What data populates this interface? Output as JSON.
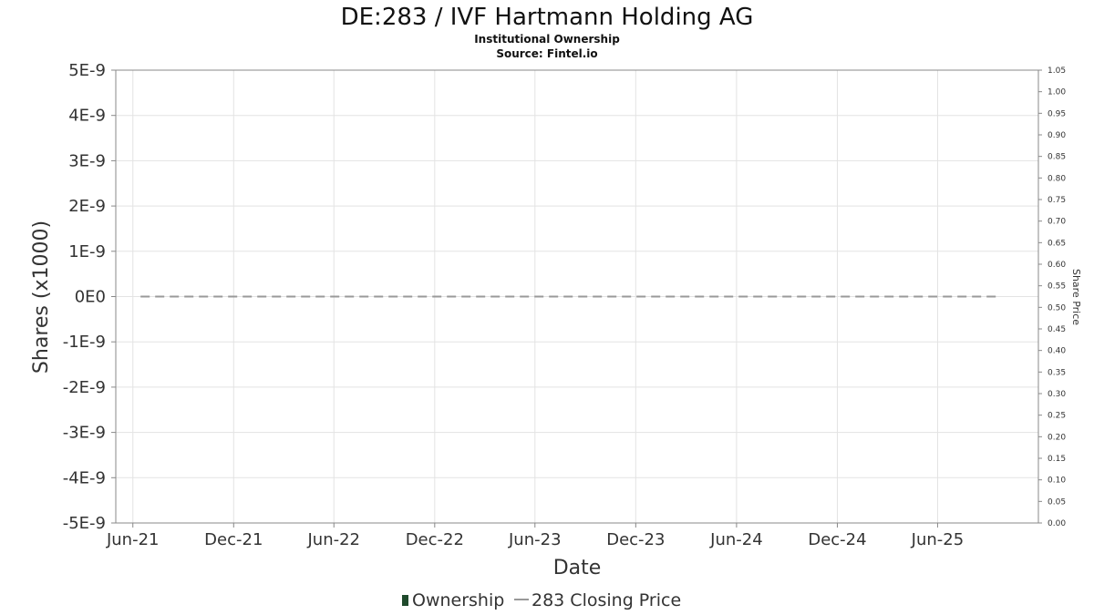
{
  "chart_data": {
    "type": "line",
    "title": "DE:283 / IVF Hartmann Holding AG",
    "subtitle_lines": [
      "Institutional Ownership",
      "Source: Fintel.io"
    ],
    "xlabel": "Date",
    "ylabel": "Shares (x1000)",
    "ylabel_right": "Share Price",
    "x_tick_labels": [
      "Jun-21",
      "Dec-21",
      "Jun-22",
      "Dec-22",
      "Jun-23",
      "Dec-23",
      "Jun-24",
      "Dec-24",
      "Jun-25"
    ],
    "x_tick_dates": [
      "2021-06-01",
      "2021-12-01",
      "2022-06-01",
      "2022-12-01",
      "2023-06-01",
      "2023-12-01",
      "2024-06-01",
      "2024-12-01",
      "2025-06-01"
    ],
    "xlim": [
      "2021-05-01",
      "2025-12-01"
    ],
    "y_left_ticks": [
      "5E-9",
      "4E-9",
      "3E-9",
      "2E-9",
      "1E-9",
      "0E0",
      "-1E-9",
      "-2E-9",
      "-3E-9",
      "-4E-9",
      "-5E-9"
    ],
    "ylim": [
      -5e-09,
      5e-09
    ],
    "y_right_ticks": [
      "1.05",
      "1.00",
      "0.95",
      "0.90",
      "0.85",
      "0.80",
      "0.75",
      "0.70",
      "0.65",
      "0.60",
      "0.55",
      "0.50",
      "0.45",
      "0.40",
      "0.35",
      "0.30",
      "0.25",
      "0.20",
      "0.15",
      "0.10",
      "0.05",
      "0.00"
    ],
    "ylim_right": [
      0,
      1.05
    ],
    "grid": true,
    "legend_position": "bottom",
    "series": [
      {
        "name": "Ownership",
        "color": "#1f4a2c",
        "axis": "left",
        "x": [],
        "values": []
      },
      {
        "name": "283 Closing Price",
        "color": "#999999",
        "style": "dashed",
        "axis": "left",
        "x": [
          "2021-06-15",
          "2025-09-15"
        ],
        "values": [
          0,
          0
        ]
      }
    ]
  }
}
